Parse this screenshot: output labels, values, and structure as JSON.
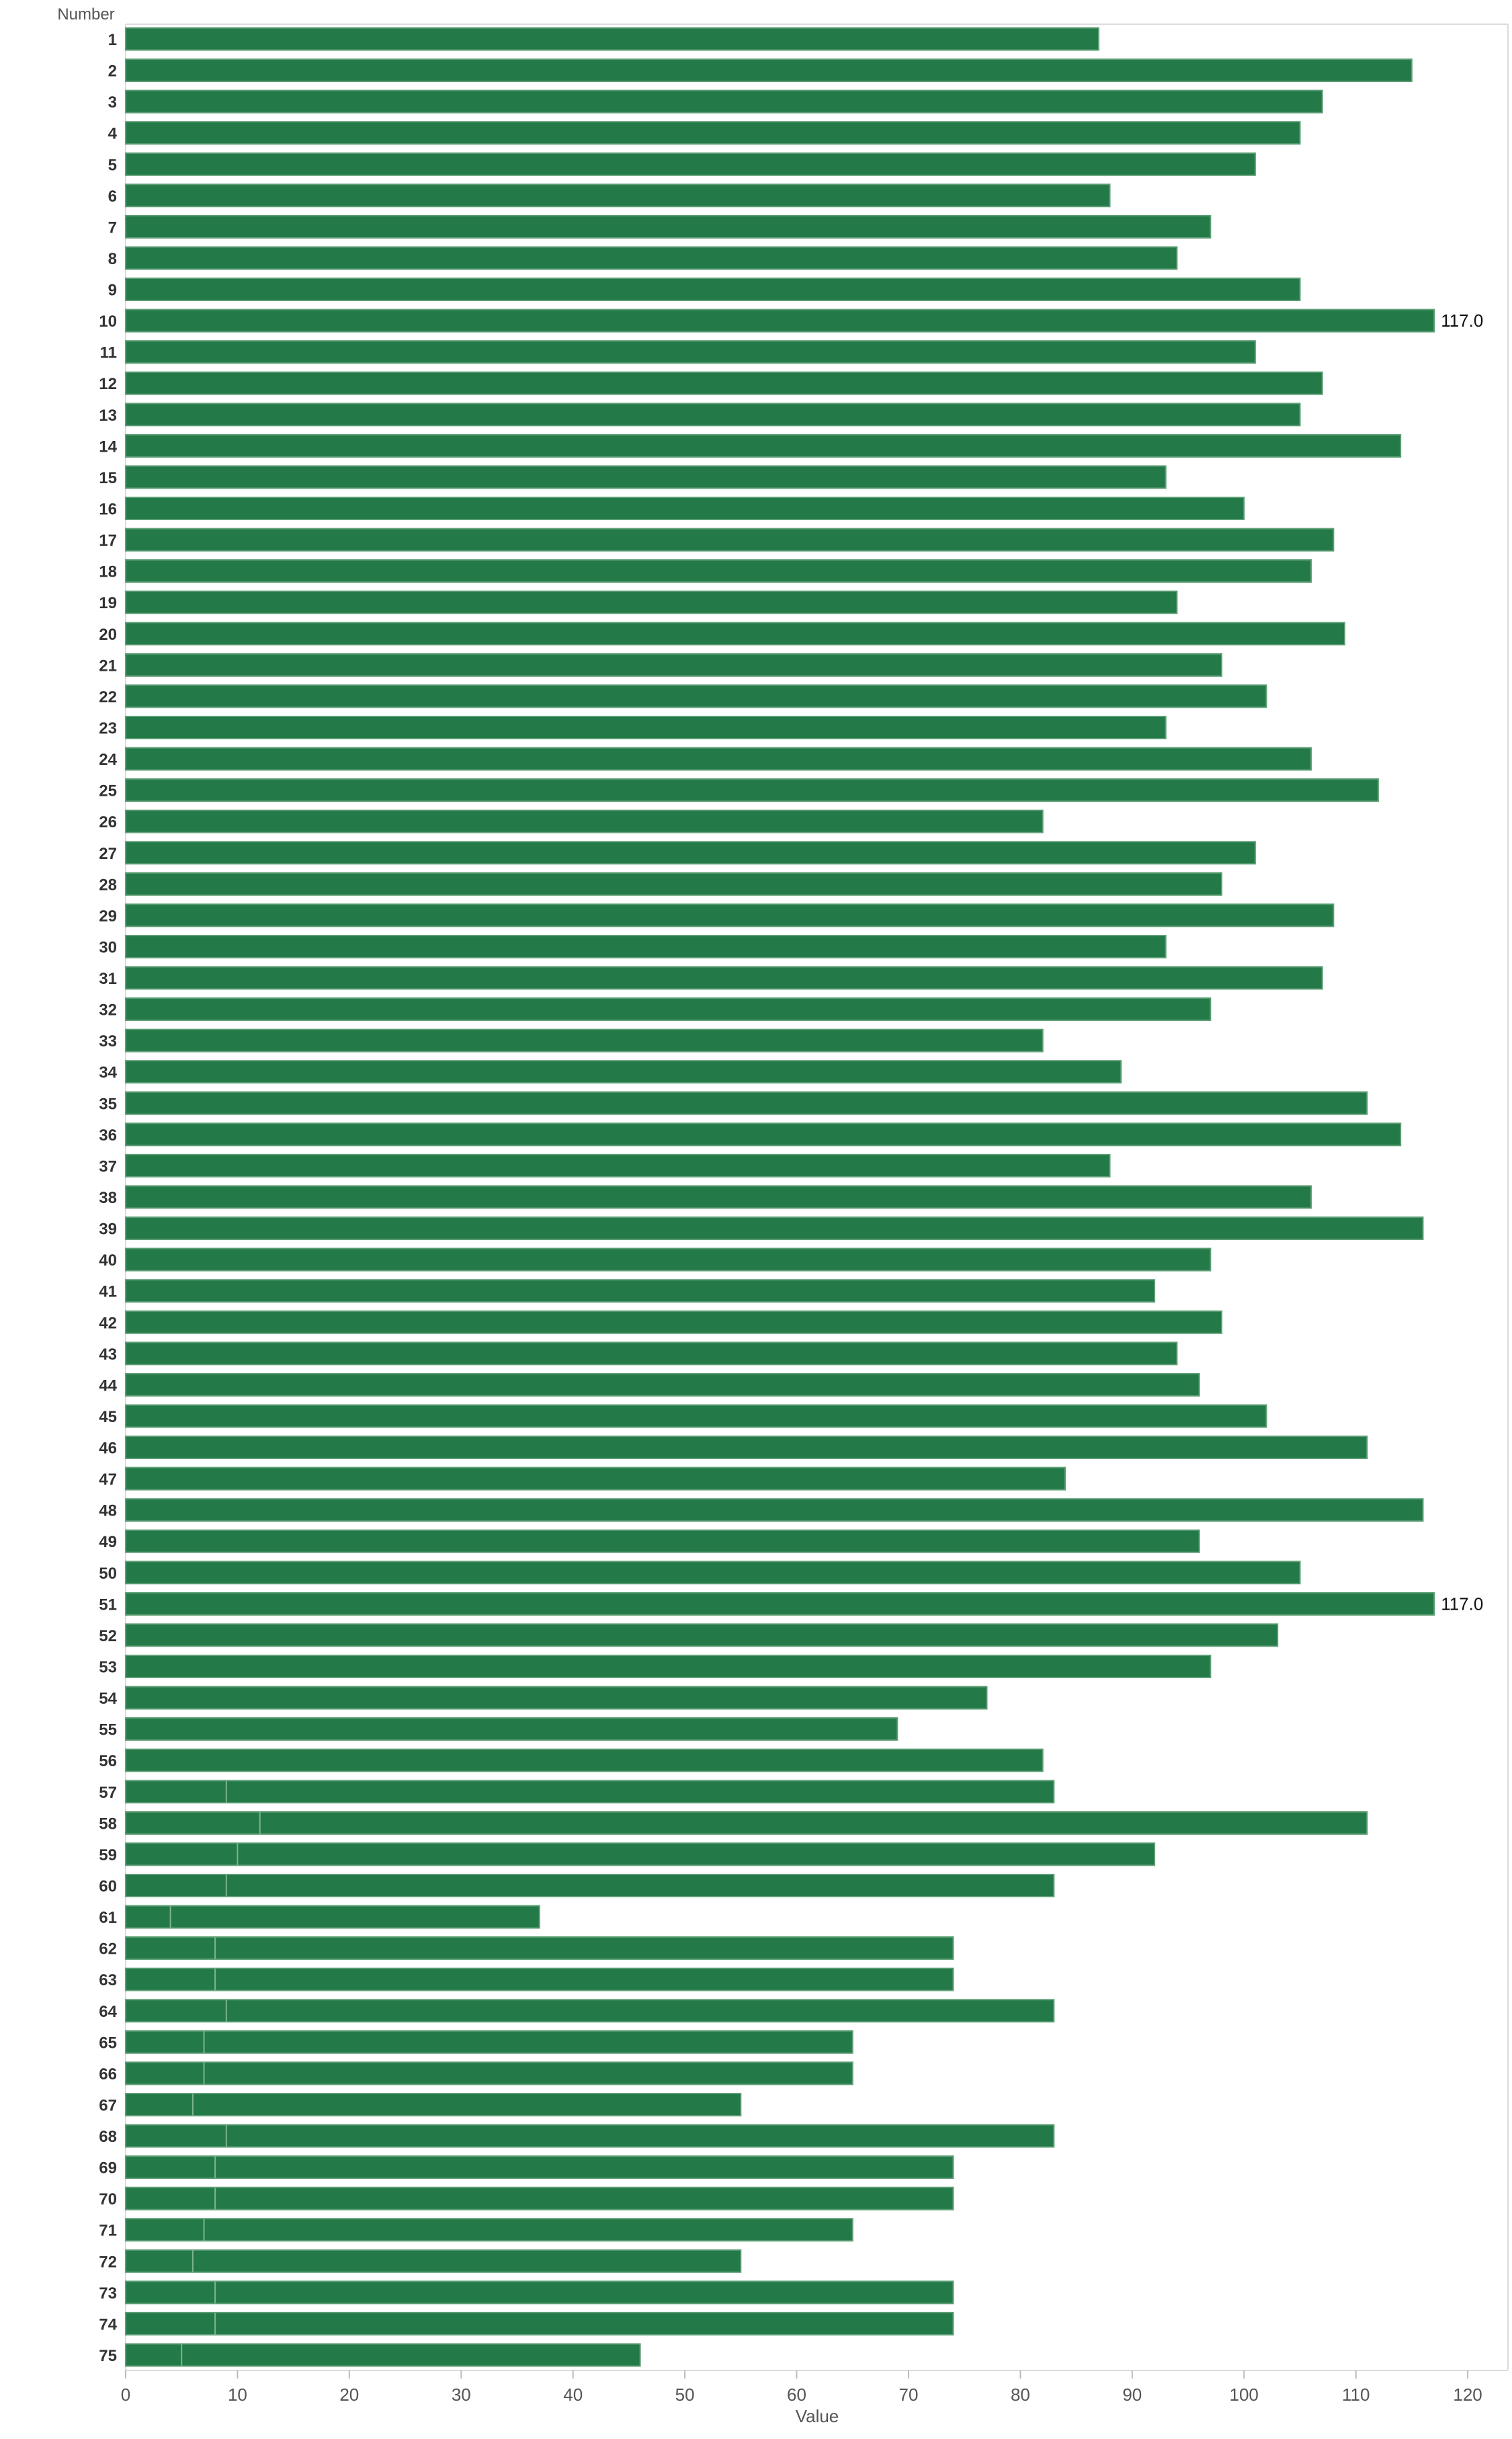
{
  "chart_data": {
    "type": "bar",
    "orientation": "horizontal",
    "y_axis_title": "Number",
    "x_axis_title": "Value",
    "categories": [
      "1",
      "2",
      "3",
      "4",
      "5",
      "6",
      "7",
      "8",
      "9",
      "10",
      "11",
      "12",
      "13",
      "14",
      "15",
      "16",
      "17",
      "18",
      "19",
      "20",
      "21",
      "22",
      "23",
      "24",
      "25",
      "26",
      "27",
      "28",
      "29",
      "30",
      "31",
      "32",
      "33",
      "34",
      "35",
      "36",
      "37",
      "38",
      "39",
      "40",
      "41",
      "42",
      "43",
      "44",
      "45",
      "46",
      "47",
      "48",
      "49",
      "50",
      "51",
      "52",
      "53",
      "54",
      "55",
      "56",
      "57",
      "58",
      "59",
      "60",
      "61",
      "62",
      "63",
      "64",
      "65",
      "66",
      "67",
      "68",
      "69",
      "70",
      "71",
      "72",
      "73",
      "74",
      "75"
    ],
    "values": [
      87,
      115,
      107,
      105,
      101,
      88,
      97,
      94,
      105,
      117,
      101,
      107,
      105,
      114,
      93,
      100,
      108,
      106,
      94,
      109,
      98,
      102,
      93,
      106,
      112,
      82,
      101,
      98,
      108,
      93,
      107,
      97,
      82,
      89,
      111,
      114,
      88,
      106,
      116,
      97,
      92,
      98,
      94,
      96,
      102,
      111,
      84,
      116,
      96,
      105,
      117,
      103,
      97,
      77,
      69,
      82,
      83,
      111,
      92,
      83,
      37,
      74,
      74,
      83,
      65,
      65,
      55,
      83,
      74,
      74,
      65,
      55,
      74,
      74,
      46
    ],
    "segment_divider_values": [
      null,
      null,
      null,
      null,
      null,
      null,
      null,
      null,
      null,
      null,
      null,
      null,
      null,
      null,
      null,
      null,
      null,
      null,
      null,
      null,
      null,
      null,
      null,
      null,
      null,
      null,
      null,
      null,
      null,
      null,
      null,
      null,
      null,
      null,
      null,
      null,
      null,
      null,
      null,
      null,
      null,
      null,
      null,
      null,
      null,
      null,
      null,
      null,
      null,
      null,
      null,
      null,
      null,
      null,
      null,
      null,
      9,
      12,
      10,
      9,
      4,
      8,
      8,
      9,
      7,
      7,
      6,
      9,
      8,
      8,
      7,
      6,
      8,
      8,
      5
    ],
    "data_labels": [
      {
        "category": "10",
        "text": "117.0"
      },
      {
        "category": "51",
        "text": "117.0"
      }
    ],
    "x_ticks": [
      "0",
      "10",
      "20",
      "30",
      "40",
      "50",
      "60",
      "70",
      "80",
      "90",
      "100",
      "110",
      "120"
    ],
    "xlim": [
      0,
      123.6
    ],
    "grid": false,
    "legend": "none",
    "bar_color": "#237A48",
    "bar_outline_color": "#5E9E75",
    "divider_color": "#7DB38F",
    "axis_color": "#DCDCDC",
    "tick_label_color": "#555555",
    "category_label_color": "#333333",
    "data_label_color": "#111111"
  }
}
